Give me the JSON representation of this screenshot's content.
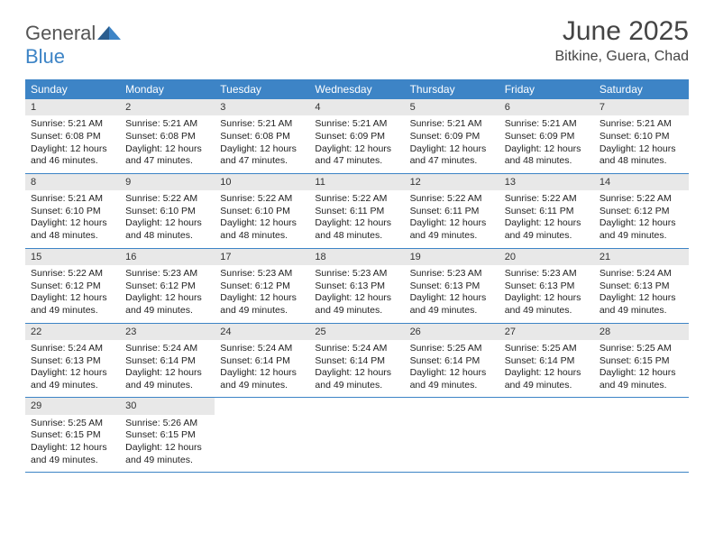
{
  "logo": {
    "general": "General",
    "blue": "Blue"
  },
  "colors": {
    "header_bg": "#3d84c6",
    "header_text": "#ffffff",
    "daynum_bg": "#e8e8e8",
    "row_border": "#3d84c6",
    "text": "#222222",
    "title": "#444444"
  },
  "calendar": {
    "title": "June 2025",
    "location": "Bitkine, Guera, Chad",
    "day_headers": [
      "Sunday",
      "Monday",
      "Tuesday",
      "Wednesday",
      "Thursday",
      "Friday",
      "Saturday"
    ],
    "days": [
      {
        "n": "1",
        "sr": "5:21 AM",
        "ss": "6:08 PM",
        "dl": "12 hours and 46 minutes."
      },
      {
        "n": "2",
        "sr": "5:21 AM",
        "ss": "6:08 PM",
        "dl": "12 hours and 47 minutes."
      },
      {
        "n": "3",
        "sr": "5:21 AM",
        "ss": "6:08 PM",
        "dl": "12 hours and 47 minutes."
      },
      {
        "n": "4",
        "sr": "5:21 AM",
        "ss": "6:09 PM",
        "dl": "12 hours and 47 minutes."
      },
      {
        "n": "5",
        "sr": "5:21 AM",
        "ss": "6:09 PM",
        "dl": "12 hours and 47 minutes."
      },
      {
        "n": "6",
        "sr": "5:21 AM",
        "ss": "6:09 PM",
        "dl": "12 hours and 48 minutes."
      },
      {
        "n": "7",
        "sr": "5:21 AM",
        "ss": "6:10 PM",
        "dl": "12 hours and 48 minutes."
      },
      {
        "n": "8",
        "sr": "5:21 AM",
        "ss": "6:10 PM",
        "dl": "12 hours and 48 minutes."
      },
      {
        "n": "9",
        "sr": "5:22 AM",
        "ss": "6:10 PM",
        "dl": "12 hours and 48 minutes."
      },
      {
        "n": "10",
        "sr": "5:22 AM",
        "ss": "6:10 PM",
        "dl": "12 hours and 48 minutes."
      },
      {
        "n": "11",
        "sr": "5:22 AM",
        "ss": "6:11 PM",
        "dl": "12 hours and 48 minutes."
      },
      {
        "n": "12",
        "sr": "5:22 AM",
        "ss": "6:11 PM",
        "dl": "12 hours and 49 minutes."
      },
      {
        "n": "13",
        "sr": "5:22 AM",
        "ss": "6:11 PM",
        "dl": "12 hours and 49 minutes."
      },
      {
        "n": "14",
        "sr": "5:22 AM",
        "ss": "6:12 PM",
        "dl": "12 hours and 49 minutes."
      },
      {
        "n": "15",
        "sr": "5:22 AM",
        "ss": "6:12 PM",
        "dl": "12 hours and 49 minutes."
      },
      {
        "n": "16",
        "sr": "5:23 AM",
        "ss": "6:12 PM",
        "dl": "12 hours and 49 minutes."
      },
      {
        "n": "17",
        "sr": "5:23 AM",
        "ss": "6:12 PM",
        "dl": "12 hours and 49 minutes."
      },
      {
        "n": "18",
        "sr": "5:23 AM",
        "ss": "6:13 PM",
        "dl": "12 hours and 49 minutes."
      },
      {
        "n": "19",
        "sr": "5:23 AM",
        "ss": "6:13 PM",
        "dl": "12 hours and 49 minutes."
      },
      {
        "n": "20",
        "sr": "5:23 AM",
        "ss": "6:13 PM",
        "dl": "12 hours and 49 minutes."
      },
      {
        "n": "21",
        "sr": "5:24 AM",
        "ss": "6:13 PM",
        "dl": "12 hours and 49 minutes."
      },
      {
        "n": "22",
        "sr": "5:24 AM",
        "ss": "6:13 PM",
        "dl": "12 hours and 49 minutes."
      },
      {
        "n": "23",
        "sr": "5:24 AM",
        "ss": "6:14 PM",
        "dl": "12 hours and 49 minutes."
      },
      {
        "n": "24",
        "sr": "5:24 AM",
        "ss": "6:14 PM",
        "dl": "12 hours and 49 minutes."
      },
      {
        "n": "25",
        "sr": "5:24 AM",
        "ss": "6:14 PM",
        "dl": "12 hours and 49 minutes."
      },
      {
        "n": "26",
        "sr": "5:25 AM",
        "ss": "6:14 PM",
        "dl": "12 hours and 49 minutes."
      },
      {
        "n": "27",
        "sr": "5:25 AM",
        "ss": "6:14 PM",
        "dl": "12 hours and 49 minutes."
      },
      {
        "n": "28",
        "sr": "5:25 AM",
        "ss": "6:15 PM",
        "dl": "12 hours and 49 minutes."
      },
      {
        "n": "29",
        "sr": "5:25 AM",
        "ss": "6:15 PM",
        "dl": "12 hours and 49 minutes."
      },
      {
        "n": "30",
        "sr": "5:26 AM",
        "ss": "6:15 PM",
        "dl": "12 hours and 49 minutes."
      }
    ],
    "labels": {
      "sunrise_prefix": "Sunrise: ",
      "sunset_prefix": "Sunset: ",
      "daylight_prefix": "Daylight: "
    }
  }
}
